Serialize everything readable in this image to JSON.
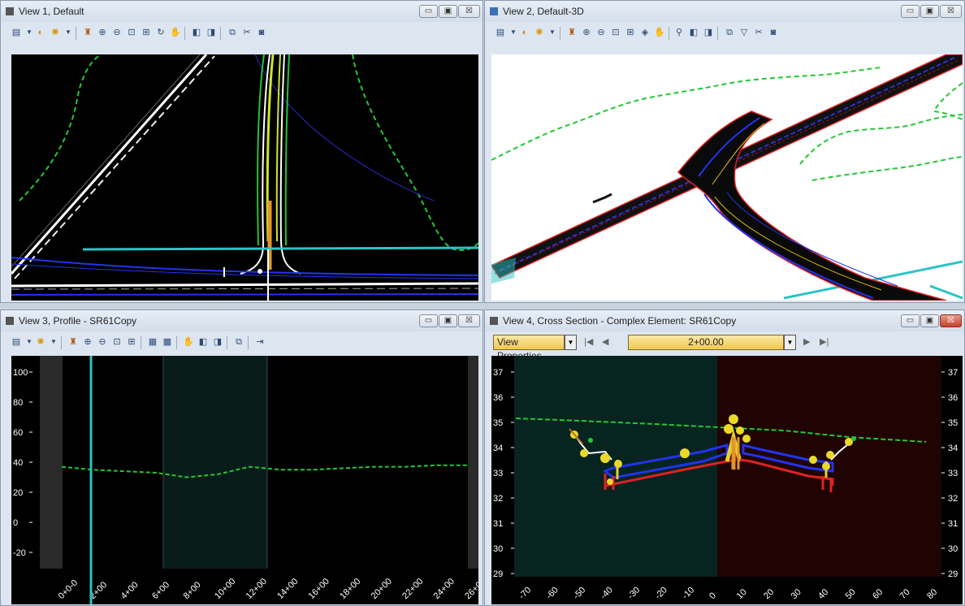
{
  "views": [
    {
      "title": "View 1, Default"
    },
    {
      "title": "View 2, Default-3D"
    },
    {
      "title": "View 3, Profile - SR61Copy"
    },
    {
      "title": "View 4, Cross Section - Complex Element: SR61Copy"
    }
  ],
  "window_controls": {
    "minimize": "▭",
    "restore": "▣",
    "close": "☒"
  },
  "profile": {
    "y_ticks": [
      "100",
      "80",
      "60",
      "40",
      "20",
      "0",
      "-20"
    ],
    "x_ticks": [
      "0+0-0",
      "2+00",
      "4+00",
      "6+00",
      "8+00",
      "10+00",
      "12+00",
      "14+00",
      "16+00",
      "18+00",
      "20+00",
      "22+00",
      "24+00",
      "26+00"
    ],
    "ground_line": {
      "x_stations": [
        0,
        2,
        4,
        6,
        8,
        10,
        12,
        14,
        16,
        18,
        20,
        22,
        24,
        26
      ],
      "elev": [
        37,
        35,
        34,
        33,
        30,
        32,
        37,
        35,
        35,
        36,
        37,
        37,
        38,
        38
      ]
    }
  },
  "cross_section": {
    "view_properties_label": "View Properties",
    "station": "2+00.00",
    "y_ticks": [
      "37",
      "36",
      "35",
      "34",
      "33",
      "32",
      "31",
      "30",
      "29"
    ],
    "x_ticks": [
      "-70",
      "-60",
      "-50",
      "-40",
      "-30",
      "-20",
      "-10",
      "0",
      "10",
      "20",
      "30",
      "40",
      "50",
      "60",
      "70",
      "80"
    ]
  },
  "colors": {
    "bg_black": "#000000",
    "ground": "#22c833",
    "cyan": "#2cc4c4",
    "left_panel": "#082420",
    "right_panel": "#200404",
    "toolbar_bg": "#dde6f0"
  }
}
